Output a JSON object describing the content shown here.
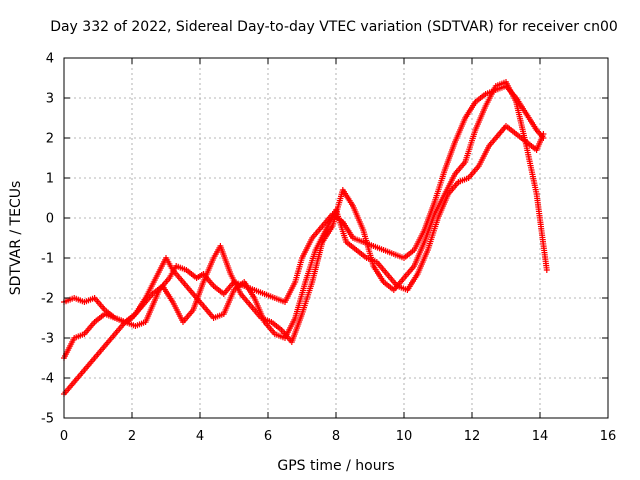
{
  "chart_data": {
    "type": "scatter",
    "title": "Day 332 of 2022, Sidereal Day-to-day VTEC variation (SDTVAR) for receiver cn00",
    "xlabel": "GPS time / hours",
    "ylabel": "SDTVAR / TECUs",
    "xlim": [
      0,
      16
    ],
    "ylim": [
      -5,
      4
    ],
    "x_ticks": [
      "0",
      "2",
      "4",
      "6",
      "8",
      "10",
      "12",
      "14",
      "16"
    ],
    "y_ticks": [
      "-5",
      "-4",
      "-3",
      "-2",
      "-1",
      "0",
      "1",
      "2",
      "3",
      "4"
    ],
    "grid": true,
    "marker": "plus",
    "color": "#ff0000",
    "series": [
      {
        "x": [
          0.0,
          0.3,
          0.6,
          0.9,
          1.2,
          1.5,
          1.8,
          2.1,
          2.4,
          2.6,
          2.8,
          3.1,
          3.3,
          3.6,
          3.9,
          4.1,
          4.4,
          4.7,
          5.0,
          5.3,
          5.6,
          5.9,
          6.2,
          6.5,
          6.8,
          7.0,
          7.3,
          7.6,
          7.9,
          8.2,
          8.5,
          8.8,
          9.1,
          9.4,
          9.7,
          10.0,
          10.3,
          10.6,
          10.9,
          11.2,
          11.5,
          11.8,
          12.1,
          12.4,
          12.7,
          13.0,
          13.3,
          13.6,
          13.9,
          14.1
        ],
        "y": [
          -2.1,
          -2.0,
          -2.1,
          -2.0,
          -2.3,
          -2.5,
          -2.6,
          -2.7,
          -2.6,
          -2.2,
          -1.8,
          -1.5,
          -1.2,
          -1.3,
          -1.5,
          -1.4,
          -1.7,
          -1.9,
          -1.6,
          -1.7,
          -1.8,
          -1.9,
          -2.0,
          -2.1,
          -1.6,
          -1.0,
          -0.5,
          -0.2,
          0.1,
          -0.1,
          -0.5,
          -0.6,
          -0.7,
          -0.8,
          -0.9,
          -1.0,
          -0.8,
          -0.3,
          0.4,
          1.2,
          1.9,
          2.5,
          2.9,
          3.1,
          3.2,
          3.3,
          3.0,
          2.6,
          2.2,
          2.0
        ]
      },
      {
        "x": [
          0.0,
          0.3,
          0.6,
          0.9,
          1.2,
          1.5,
          1.8,
          2.1,
          2.4,
          2.7,
          3.0,
          3.2,
          3.5,
          3.8,
          4.1,
          4.4,
          4.7,
          5.0,
          5.3,
          5.6,
          5.9,
          6.2,
          6.5,
          6.8,
          7.1,
          7.4,
          7.7,
          8.0,
          8.3,
          8.6,
          8.9,
          9.2,
          9.5,
          9.8,
          10.1,
          10.4,
          10.7,
          11.0,
          11.3,
          11.6,
          11.9,
          12.2,
          12.5,
          12.8,
          13.0,
          13.3,
          13.6,
          13.9,
          14.1
        ],
        "y": [
          -3.5,
          -3.0,
          -2.9,
          -2.6,
          -2.4,
          -2.5,
          -2.6,
          -2.4,
          -2.0,
          -1.5,
          -1.0,
          -1.3,
          -1.6,
          -1.9,
          -2.2,
          -2.5,
          -2.4,
          -1.8,
          -1.6,
          -2.0,
          -2.6,
          -2.9,
          -3.0,
          -2.5,
          -1.6,
          -0.8,
          -0.3,
          0.2,
          -0.6,
          -0.8,
          -1.0,
          -1.1,
          -1.4,
          -1.7,
          -1.8,
          -1.4,
          -0.8,
          0.0,
          0.6,
          0.9,
          1.0,
          1.3,
          1.8,
          2.1,
          2.3,
          2.1,
          1.9,
          1.7,
          2.1
        ]
      },
      {
        "x": [
          0.0,
          0.3,
          0.6,
          0.9,
          1.2,
          1.5,
          1.8,
          2.0,
          2.3,
          2.6,
          2.9,
          3.2,
          3.5,
          3.8,
          4.1,
          4.4,
          4.6,
          4.9,
          5.2,
          5.5,
          5.8,
          6.1,
          6.4,
          6.7,
          7.0,
          7.3,
          7.6,
          7.9,
          8.2,
          8.5,
          8.8,
          9.1,
          9.4,
          9.7,
          10.0,
          10.3,
          10.6,
          10.9,
          11.2,
          11.5,
          11.8,
          12.1,
          12.4,
          12.7,
          13.0,
          13.3,
          13.6,
          13.9,
          14.2
        ],
        "y": [
          -4.4,
          -4.1,
          -3.8,
          -3.5,
          -3.2,
          -2.9,
          -2.6,
          -2.5,
          -2.2,
          -1.9,
          -1.7,
          -2.1,
          -2.6,
          -2.3,
          -1.6,
          -1.0,
          -0.7,
          -1.4,
          -1.9,
          -2.2,
          -2.5,
          -2.6,
          -2.8,
          -3.1,
          -2.4,
          -1.6,
          -0.6,
          -0.2,
          0.7,
          0.3,
          -0.3,
          -1.2,
          -1.6,
          -1.8,
          -1.5,
          -1.2,
          -0.6,
          0.1,
          0.6,
          1.1,
          1.4,
          2.2,
          2.8,
          3.3,
          3.4,
          2.9,
          1.8,
          0.6,
          -1.3
        ]
      }
    ]
  }
}
